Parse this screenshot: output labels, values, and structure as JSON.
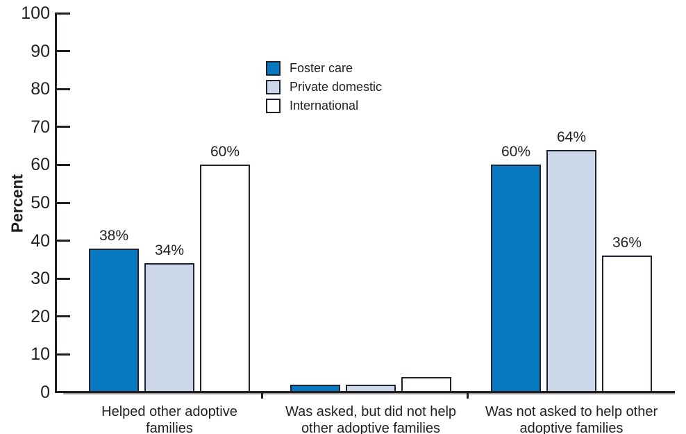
{
  "chart_data": {
    "type": "bar",
    "title": "",
    "xlabel": "",
    "ylabel": "Percent",
    "ylim": [
      0,
      100
    ],
    "ytick_step": 10,
    "yticks": [
      100,
      90,
      80,
      70,
      60,
      50,
      40,
      30,
      20,
      10,
      0
    ],
    "grid": false,
    "legend_position": "upper area, left of plot center",
    "categories": [
      "Helped other adoptive families",
      "Was asked, but did not help other adoptive families",
      "Was not asked to help other adoptive families"
    ],
    "category_label_lines": [
      [
        "Helped other adoptive",
        "families"
      ],
      [
        "Was asked, but did not help",
        "other adoptive families"
      ],
      [
        "Was not asked to help other",
        "adoptive families"
      ]
    ],
    "series": [
      {
        "name": "Foster care",
        "color": "#0878c1",
        "values": [
          38,
          2,
          60
        ],
        "bar_labels": [
          "38%",
          "",
          "60%"
        ]
      },
      {
        "name": "Private domestic",
        "color": "#ccd7e9",
        "values": [
          34,
          2,
          64
        ],
        "bar_labels": [
          "34%",
          "",
          "64%"
        ]
      },
      {
        "name": "International",
        "color": "#ffffff",
        "values": [
          60,
          4,
          36
        ],
        "bar_labels": [
          "60%",
          "",
          "36%"
        ]
      }
    ]
  },
  "colors": {
    "axis": "#231f20",
    "text": "#231f20",
    "bar_border": "#1d2430",
    "baseline_shadow": "#9a9a9a",
    "background": "#ffffff"
  }
}
